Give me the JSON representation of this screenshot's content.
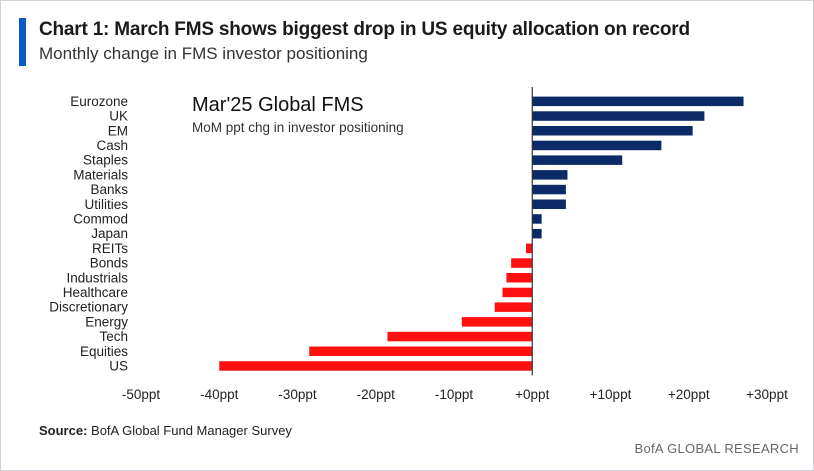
{
  "header": {
    "title": "Chart 1: March FMS shows biggest drop in US equity allocation on record",
    "subtitle": "Monthly change in FMS investor positioning"
  },
  "chart_data": {
    "type": "bar",
    "orientation": "horizontal",
    "inset_title": "Mar'25 Global FMS",
    "inset_subtitle": "MoM ppt chg in investor positioning",
    "categories": [
      "Eurozone",
      "UK",
      "EM",
      "Cash",
      "Staples",
      "Materials",
      "Banks",
      "Utilities",
      "Commod",
      "Japan",
      "REITs",
      "Bonds",
      "Industrials",
      "Healthcare",
      "Discretionary",
      "Energy",
      "Tech",
      "Equities",
      "US"
    ],
    "values": [
      27,
      22,
      20.5,
      16.5,
      11.5,
      4.5,
      4.3,
      4.3,
      1.2,
      1.2,
      -0.8,
      -2.7,
      -3.3,
      -3.8,
      -4.8,
      -9,
      -18.5,
      -28.5,
      -40
    ],
    "xlim": [
      -50,
      30
    ],
    "xticks": [
      -50,
      -40,
      -30,
      -20,
      -10,
      0,
      10,
      20,
      30
    ],
    "xtick_labels": [
      "-50ppt",
      "-40ppt",
      "-30ppt",
      "-20ppt",
      "-10ppt",
      "+0ppt",
      "+10ppt",
      "+20ppt",
      "+30ppt"
    ],
    "grid": false,
    "colors": {
      "positive": "#0b2a66",
      "negative": "#ff1010",
      "axis": "#333333"
    }
  },
  "footer": {
    "source_label": "Source:",
    "source_text": "BofA Global Fund Manager Survey",
    "brand": "BofA GLOBAL RESEARCH"
  }
}
